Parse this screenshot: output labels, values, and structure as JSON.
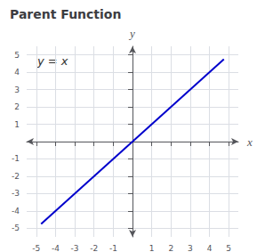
{
  "chart_data": {
    "type": "line",
    "title": "Parent Function",
    "annotations": [
      "y = x"
    ],
    "xlabel": "x",
    "ylabel": "y",
    "x": [
      -4.75,
      4.75
    ],
    "series": [
      {
        "name": "y = x",
        "color": "#0000cc",
        "values": [
          -4.75,
          4.75
        ]
      }
    ],
    "xlim": [
      -5.5,
      5.5
    ],
    "ylim": [
      -5.5,
      5.5
    ],
    "xticks": [
      -5,
      -4,
      -3,
      -2,
      -1,
      1,
      2,
      3,
      4,
      5
    ],
    "yticks": [
      -5,
      -4,
      -3,
      -2,
      -1,
      1,
      2,
      3,
      4,
      5
    ],
    "grid": true
  }
}
